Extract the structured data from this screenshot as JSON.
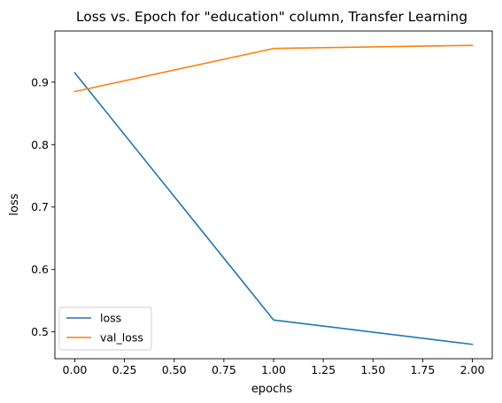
{
  "chart_data": {
    "type": "line",
    "title": "Loss vs. Epoch for \"education\" column, Transfer Learning",
    "xlabel": "epochs",
    "ylabel": "loss",
    "x": [
      0,
      1,
      2
    ],
    "xlim": [
      -0.1,
      2.1
    ],
    "ylim": [
      0.457,
      0.982
    ],
    "x_ticks": [
      0.0,
      0.25,
      0.5,
      0.75,
      1.0,
      1.25,
      1.5,
      1.75,
      2.0
    ],
    "x_tick_labels": [
      "0.00",
      "0.25",
      "0.50",
      "0.75",
      "1.00",
      "1.25",
      "1.50",
      "1.75",
      "2.00"
    ],
    "y_ticks": [
      0.5,
      0.6,
      0.7,
      0.8,
      0.9
    ],
    "y_tick_labels": [
      "0.5",
      "0.6",
      "0.7",
      "0.8",
      "0.9"
    ],
    "grid": false,
    "legend_position": "lower-left",
    "series": [
      {
        "name": "loss",
        "color": "#1f77b4",
        "values": [
          0.915,
          0.519,
          0.48
        ]
      },
      {
        "name": "val_loss",
        "color": "#ff7f0e",
        "values": [
          0.885,
          0.954,
          0.959
        ]
      }
    ]
  }
}
